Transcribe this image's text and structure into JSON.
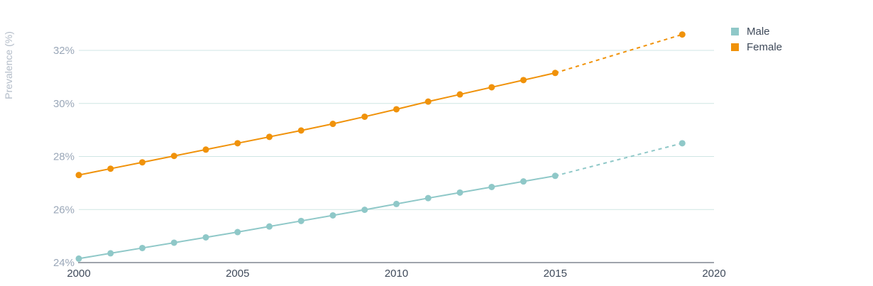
{
  "chart_data": {
    "type": "line",
    "ylabel": "Prevalence (%)",
    "xlabel": "",
    "xlim": [
      2000,
      2020
    ],
    "ylim": [
      24,
      33.5
    ],
    "x_ticks": [
      "2000",
      "2005",
      "2010",
      "2015",
      "2020"
    ],
    "y_ticks": [
      "24%",
      "26%",
      "28%",
      "30%",
      "32%"
    ],
    "y_tick_values": [
      24,
      26,
      28,
      30,
      32
    ],
    "x_tick_values": [
      2000,
      2005,
      2010,
      2015,
      2020
    ],
    "grid": true,
    "legend_position": "top-right",
    "series": [
      {
        "name": "Male",
        "color": "#8fc8c8",
        "x": [
          2000,
          2001,
          2002,
          2003,
          2004,
          2005,
          2006,
          2007,
          2008,
          2009,
          2010,
          2011,
          2012,
          2013,
          2014,
          2015
        ],
        "values": [
          24.15,
          24.35,
          24.55,
          24.75,
          24.95,
          25.15,
          25.36,
          25.57,
          25.78,
          25.99,
          26.21,
          26.43,
          26.64,
          26.85,
          27.06,
          27.27
        ],
        "projection": {
          "x": [
            2015,
            2019
          ],
          "values": [
            27.27,
            28.5
          ]
        }
      },
      {
        "name": "Female",
        "color": "#f0920a",
        "x": [
          2000,
          2001,
          2002,
          2003,
          2004,
          2005,
          2006,
          2007,
          2008,
          2009,
          2010,
          2011,
          2012,
          2013,
          2014,
          2015
        ],
        "values": [
          27.3,
          27.54,
          27.78,
          28.02,
          28.26,
          28.5,
          28.74,
          28.98,
          29.23,
          29.5,
          29.78,
          30.07,
          30.34,
          30.61,
          30.88,
          31.15
        ],
        "projection": {
          "x": [
            2015,
            2019
          ],
          "values": [
            31.15,
            32.6
          ]
        }
      }
    ]
  }
}
